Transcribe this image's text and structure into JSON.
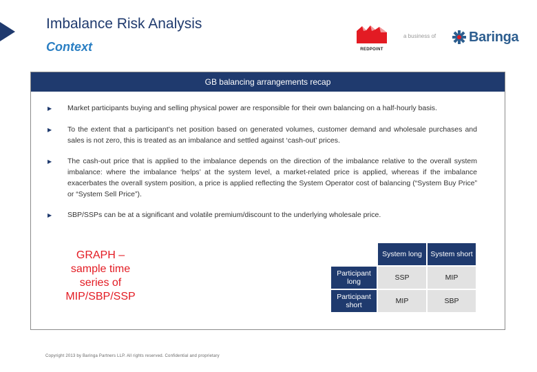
{
  "page": {
    "title": "Imbalance Risk Analysis",
    "subtitle": "Context"
  },
  "logos": {
    "redpoint": "REDPOINT",
    "business_of": "a business of",
    "baringa": "Baringa",
    "colors": {
      "redpoint": "#e31b23",
      "baringa": "#2d5e8f"
    }
  },
  "box": {
    "header": "GB balancing arrangements recap",
    "bullets": [
      "Market participants buying and selling physical power are responsible for their own balancing on a half-hourly basis.",
      "To the extent that a participant’s net position based on generated volumes, customer demand and wholesale purchases and sales is not zero, this is treated as an imbalance and settled against ‘cash-out’ prices.",
      "The cash-out price that is applied to the imbalance depends on the direction of the imbalance relative to the overall system imbalance: where the imbalance ‘helps’ at the system level, a market-related price is applied, whereas if the imbalance exacerbates the overall system position, a price is applied reflecting the System Operator cost of balancing (“System Buy Price” or “System Sell Price”).",
      "SBP/SSPs can be at a significant and volatile premium/discount to the underlying wholesale price."
    ],
    "bullet_icon": "triangle-right-icon",
    "graph_placeholder": "GRAPH – sample time series of MIP/SBP/SSP"
  },
  "table": {
    "col_headers": [
      "System long",
      "System short"
    ],
    "rows": [
      {
        "label": "Participant long",
        "values": [
          "SSP",
          "MIP"
        ]
      },
      {
        "label": "Participant short",
        "values": [
          "MIP",
          "SBP"
        ]
      }
    ]
  },
  "footer": "Copyright 2013 by Baringa Partners LLP. All rights reserved. Confidential and proprietary",
  "colors": {
    "navy": "#1f3a6e",
    "accent": "#2b7fc3",
    "red": "#e31b23",
    "cell": "#e2e2e2"
  }
}
